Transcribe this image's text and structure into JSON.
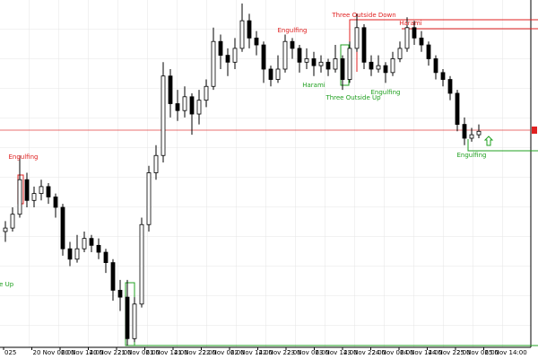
{
  "chart_data": {
    "type": "candlestick",
    "ylim": [
      0,
      100
    ],
    "ohlc": [
      [
        33,
        36,
        30,
        34
      ],
      [
        34,
        40,
        33,
        38
      ],
      [
        38,
        55,
        37,
        48
      ],
      [
        48,
        50,
        40,
        42
      ],
      [
        42,
        46,
        40,
        44
      ],
      [
        44,
        48,
        42,
        46
      ],
      [
        46,
        47,
        41,
        43
      ],
      [
        43,
        44,
        37,
        40
      ],
      [
        40,
        41,
        26,
        28
      ],
      [
        28,
        30,
        23,
        25
      ],
      [
        25,
        32,
        24,
        28
      ],
      [
        28,
        33,
        27,
        31
      ],
      [
        31,
        32,
        27,
        29
      ],
      [
        29,
        31,
        25,
        27
      ],
      [
        27,
        28,
        21,
        24
      ],
      [
        24,
        25,
        13,
        16
      ],
      [
        16,
        19,
        10,
        14
      ],
      [
        14,
        19,
        0,
        2
      ],
      [
        2,
        14,
        1,
        12
      ],
      [
        12,
        37,
        11,
        35
      ],
      [
        35,
        52,
        33,
        50
      ],
      [
        50,
        58,
        48,
        55
      ],
      [
        55,
        82,
        53,
        78
      ],
      [
        78,
        80,
        66,
        70
      ],
      [
        70,
        74,
        65,
        68
      ],
      [
        68,
        75,
        66,
        72
      ],
      [
        72,
        73,
        61,
        67
      ],
      [
        67,
        74,
        64,
        71
      ],
      [
        71,
        77,
        69,
        75
      ],
      [
        75,
        92,
        74,
        88
      ],
      [
        88,
        90,
        80,
        84
      ],
      [
        84,
        86,
        78,
        82
      ],
      [
        82,
        89,
        80,
        86
      ],
      [
        86,
        99,
        85,
        94
      ],
      [
        94,
        96,
        86,
        89
      ],
      [
        89,
        91,
        84,
        87
      ],
      [
        87,
        88,
        76,
        80
      ],
      [
        80,
        81,
        75,
        77
      ],
      [
        77,
        84,
        76,
        80
      ],
      [
        80,
        90,
        79,
        88
      ],
      [
        88,
        89,
        83,
        86
      ],
      [
        86,
        87,
        79,
        82
      ],
      [
        82,
        86,
        80,
        83
      ],
      [
        83,
        85,
        78,
        81
      ],
      [
        81,
        84,
        79,
        82
      ],
      [
        82,
        83,
        78,
        80
      ],
      [
        80,
        87,
        79,
        83
      ],
      [
        83,
        84,
        74,
        77
      ],
      [
        77,
        88,
        76,
        86
      ],
      [
        86,
        96,
        85,
        92
      ],
      [
        92,
        93,
        80,
        82
      ],
      [
        82,
        84,
        78,
        80
      ],
      [
        80,
        84,
        79,
        81
      ],
      [
        81,
        82,
        76,
        79
      ],
      [
        79,
        85,
        78,
        83
      ],
      [
        83,
        88,
        82,
        86
      ],
      [
        86,
        95,
        85,
        92
      ],
      [
        92,
        94,
        87,
        89
      ],
      [
        89,
        91,
        85,
        87
      ],
      [
        87,
        88,
        81,
        83
      ],
      [
        83,
        84,
        77,
        79
      ],
      [
        79,
        80,
        75,
        77
      ],
      [
        77,
        78,
        71,
        73
      ],
      [
        73,
        74,
        62,
        64
      ],
      [
        64,
        66,
        58,
        60
      ],
      [
        60,
        63,
        59,
        61
      ],
      [
        61,
        64,
        60,
        62
      ]
    ],
    "xlabels": [
      "025",
      "20 Nov 06:00",
      "20 Nov 14:00",
      "20 Nov 22:00",
      "21 Nov 06:00",
      "21 Nov 14:00",
      "21 Nov 22:00",
      "22 Nov 06:00",
      "22 Nov 14:00",
      "22 Nov 22:00",
      "23 Nov 06:00",
      "23 Nov 14:00",
      "23 Nov 22:00",
      "24 Nov 06:00",
      "24 Nov 14:00",
      "24 Nov 22:00",
      "25 Nov 06:00",
      "25 Nov 14:00"
    ],
    "up_color": "#ffffff",
    "down_color": "#000000",
    "annotations": [
      {
        "text": "Engulfing",
        "color": "#e02020"
      },
      {
        "text": "Engulfing",
        "color": "#e02020"
      },
      {
        "text": "Three Outside Down",
        "color": "#e02020"
      },
      {
        "text": "Harami",
        "color": "#e02020"
      },
      {
        "text": "Harami",
        "color": "#20a020"
      },
      {
        "text": "Three Outside Up",
        "color": "#20a020"
      },
      {
        "text": "Engulfing",
        "color": "#20a020"
      },
      {
        "text": "Engulfing",
        "color": "#20a020"
      },
      {
        "text": "ide Up",
        "color": "#20a020"
      }
    ]
  }
}
